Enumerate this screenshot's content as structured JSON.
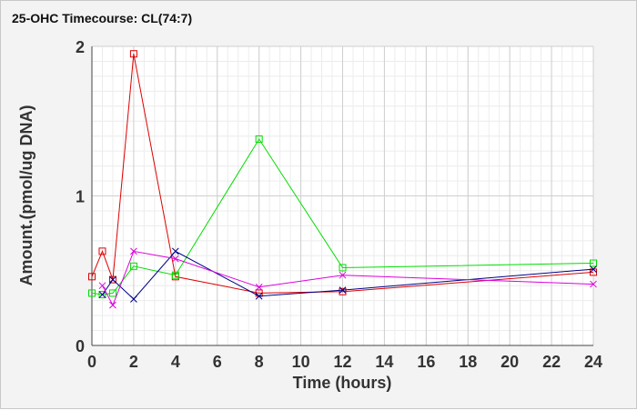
{
  "chart_data": {
    "type": "line",
    "title": "25-OHC Timecourse: CL(74:7)",
    "xlabel": "Time (hours)",
    "ylabel": "Amount.(pmol/ug DNA)",
    "xlim": [
      0,
      24
    ],
    "ylim": [
      0,
      2
    ],
    "x_ticks": [
      0,
      2,
      4,
      6,
      8,
      10,
      12,
      14,
      16,
      18,
      20,
      22,
      24
    ],
    "y_ticks": [
      0,
      1,
      2
    ],
    "grid": true,
    "legend": "none",
    "series": [
      {
        "color": "#dd0000",
        "marker": "square",
        "points": [
          [
            0,
            0.46
          ],
          [
            0.5,
            0.63
          ],
          [
            1,
            0.44
          ],
          [
            2,
            1.95
          ],
          [
            4,
            0.46
          ],
          [
            8,
            0.35
          ],
          [
            12,
            0.36
          ],
          [
            24,
            0.49
          ]
        ]
      },
      {
        "color": "#00dd00",
        "marker": "square",
        "points": [
          [
            0,
            0.35
          ],
          [
            0.5,
            0.34
          ],
          [
            1,
            0.35
          ],
          [
            2,
            0.53
          ],
          [
            4,
            0.47
          ],
          [
            8,
            1.38
          ],
          [
            12,
            0.52
          ],
          [
            24,
            0.55
          ]
        ]
      },
      {
        "color": "#000088",
        "marker": "x",
        "points": [
          [
            0.5,
            0.34
          ],
          [
            1,
            0.44
          ],
          [
            2,
            0.31
          ],
          [
            4,
            0.63
          ],
          [
            8,
            0.33
          ],
          [
            12,
            0.37
          ],
          [
            24,
            0.51
          ]
        ]
      },
      {
        "color": "#dd00dd",
        "marker": "x",
        "points": [
          [
            0.5,
            0.4
          ],
          [
            1,
            0.27
          ],
          [
            2,
            0.63
          ],
          [
            4,
            0.58
          ],
          [
            8,
            0.39
          ],
          [
            12,
            0.47
          ],
          [
            24,
            0.41
          ]
        ]
      }
    ]
  }
}
